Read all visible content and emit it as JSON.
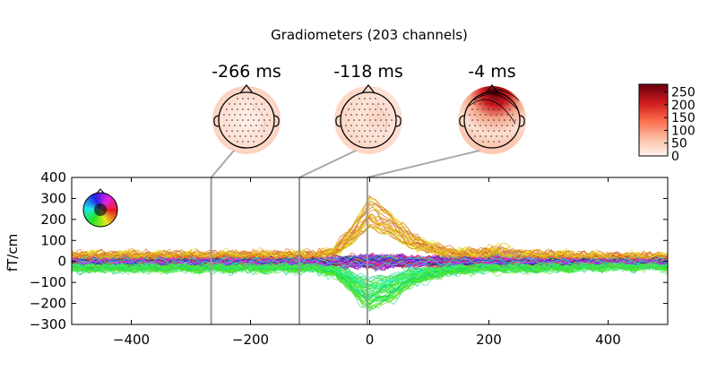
{
  "figure": {
    "title": "Gradiometers (203 channels)"
  },
  "chart_data": {
    "type": "line",
    "title": "Gradiometers (203 channels)",
    "xlabel": "",
    "ylabel": "fT/cm",
    "xlim": [
      -500,
      500
    ],
    "ylim": [
      -300,
      400
    ],
    "xticks": [
      -400,
      -200,
      0,
      200,
      400
    ],
    "yticks": [
      -300,
      -200,
      -100,
      0,
      100,
      200,
      300,
      400
    ],
    "xtick_labels": [
      "−400",
      "−200",
      "0",
      "200",
      "400"
    ],
    "ytick_labels": [
      "−300",
      "−200",
      "−100",
      "0",
      "100",
      "200",
      "300",
      "400"
    ],
    "n_channels": 203,
    "grid": false,
    "legend": "sensor-color-head-top-left",
    "time_markers": [
      -266,
      -118,
      -4
    ],
    "topomaps": [
      {
        "label": "-266 ms",
        "time": -266
      },
      {
        "label": "-118 ms",
        "time": -118
      },
      {
        "label": "-4 ms",
        "time": -4
      }
    ],
    "colorbar": {
      "range": [
        0,
        280
      ],
      "ticks": [
        0,
        50,
        100,
        150,
        200,
        250
      ],
      "tick_labels": [
        "0",
        "50",
        "100",
        "150",
        "200",
        "250"
      ],
      "colormap": "Reds"
    },
    "series_envelope": {
      "x": [
        -500,
        -400,
        -300,
        -200,
        -100,
        -60,
        -30,
        0,
        30,
        60,
        100,
        150,
        200,
        250,
        300,
        400,
        500
      ],
      "max": [
        40,
        40,
        40,
        40,
        40,
        60,
        180,
        320,
        260,
        160,
        90,
        50,
        60,
        40,
        40,
        30,
        30
      ],
      "min": [
        -40,
        -40,
        -40,
        -40,
        -40,
        -60,
        -150,
        -230,
        -200,
        -130,
        -80,
        -50,
        -40,
        -40,
        -40,
        -30,
        -30
      ]
    }
  }
}
